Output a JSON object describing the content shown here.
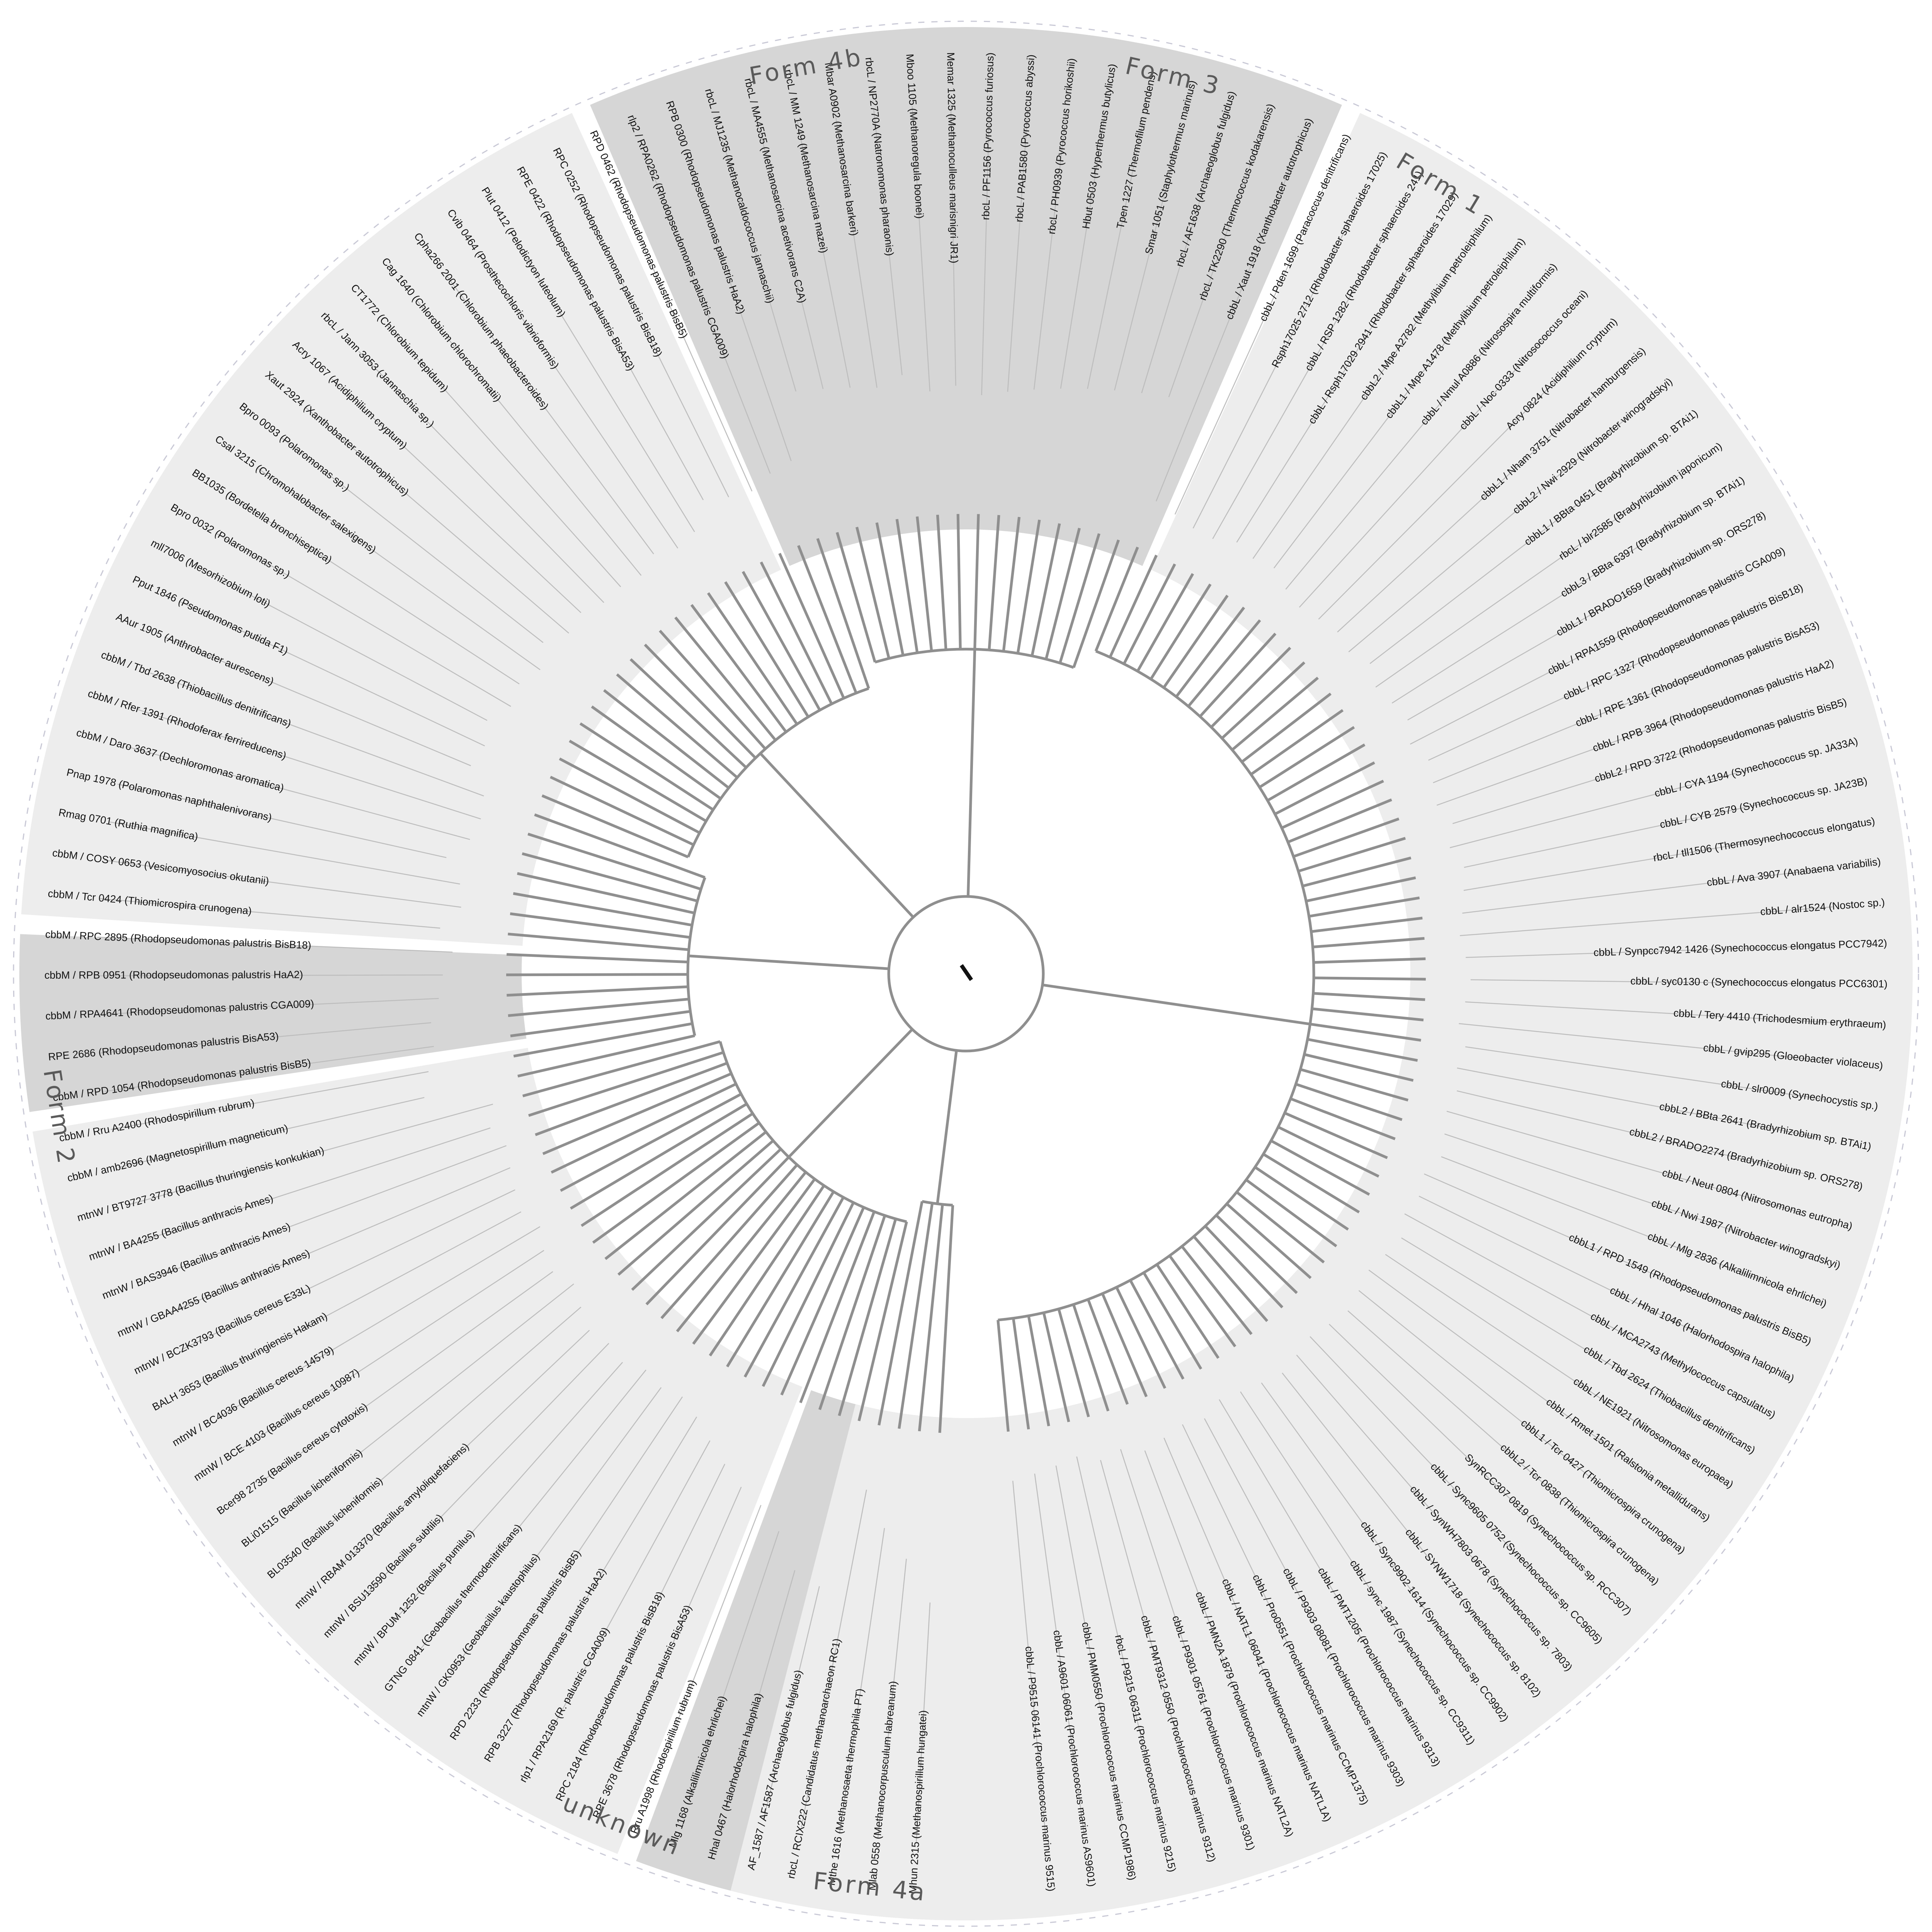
{
  "groups": [
    {
      "label": "unknown",
      "shade": "#d6d6d6",
      "leaves": [
        "Mhun 2315 (Methanospirillum hungatei)",
        "Mlab 0558 (Methanocorpusculum labreanum)",
        "Mthe 1616 (Methanosaeta thermophila PT)",
        "rbcL / RCIX222 (Candidatus methanoarchaeon RC1)"
      ]
    },
    {
      "label": "Form 4a",
      "shade": "#ededed",
      "leaves": [
        "AF_1587 / AF1587 (Archaeoglobus fulgidus)",
        "Hhal 0467 (Halorhodospira halophila)",
        "Mlg 1168 (Alkalilimnicola ehrlichei)",
        "Rru A1998 (Rhodospirillum rubrum)",
        "RPE 3678 (Rhodopseudomonas palustris BisA53)",
        "RPC 2184 (Rhodopseudomonas palustris BisB18)",
        "rlp1 / RPA2169 (R. palustris CGA009)",
        "RPB 3227 (Rhodopseudomonas palustris HaA2)",
        "RPD 2233 (Rhodopseudomonas palustris BisB5)",
        "mtnW / GK0953 (Geobacillus kaustophilus)",
        "GTNG 0841 (Geobacillus thermodenitrificans)",
        "mtnW / BPUM 1252 (Bacillus pumilus)",
        "mtnW / BSU13590 (Bacillus subtilis)",
        "mtnW / RBAM 013370 (Bacillus amyloliquefaciens)",
        "BL03540 (Bacillus licheniformis)",
        "BLi01515 (Bacillus licheniformis)",
        "Bcer98 2735 (Bacillus cereus cytotoxis)",
        "mtnW / BCE 4103 (Bacillus cereus 10987)",
        "mtnW / BC4036 (Bacillus cereus 14579)",
        "BALH 3653 (Bacillus thuringiensis Hakam)",
        "mtnW / BCZK3793 (Bacillus cereus E33L)",
        "mtnW / GBAA4255 (Bacillus anthracis Ames)",
        "mtnW / BAS3946 (Bacillus anthracis Ames)",
        "mtnW / BA4255 (Bacillus anthracis Ames)",
        "mtnW / BT9727 3778 (Bacillus thuringiensis konkukian)"
      ]
    },
    {
      "label": "Form 2",
      "shade": "#d6d6d6",
      "leaves": [
        "cbbM / amb2696 (Magnetospirillum magneticum)",
        "cbbM / Rru A2400 (Rhodospirillum rubrum)",
        "cbbM / RPD 1054 (Rhodopseudomonas palustris BisB5)",
        "RPE 2686 (Rhodopseudomonas palustris BisA53)",
        "cbbM / RPA4641 (Rhodopseudomonas palustris CGA009)",
        "cbbM / RPB 0951 (Rhodopseudomonas palustris HaA2)",
        "cbbM / RPC 2895 (Rhodopseudomonas palustris BisB18)",
        "cbbM / Tcr 0424 (Thiomicrospira crunogena)",
        "cbbM / COSY 0653 (Vesicomyosocius okutanii)",
        "Rmag 0701 (Ruthia magnifica)",
        "Pnap 1978 (Polaromonas naphthalenivorans)",
        "cbbM / Daro 3637 (Dechloromonas aromatica)",
        "cbbM / Rfer 1391 (Rhodoferax ferrireducens)",
        "cbbM / Tbd 2638 (Thiobacillus denitrificans)"
      ]
    },
    {
      "label": "Form 4b",
      "shade": "#ededed",
      "leaves": [
        "AAur 1905 (Anthrobacter aurescens)",
        "Pput 1846 (Pseudomonas putida F1)",
        "mll7006 (Mesorhizobium loti)",
        "Bpro 0032 (Polaromonas sp.)",
        "BB1035 (Bordetella bronchiseptica)",
        "Csal 3215 (Chromohalobacter salexigens)",
        "Bpro 0093 (Polaromonas sp.)",
        "Xaut 2924 (Xanthobacter autotrophicus)",
        "Acry 1067 (Acidiphilium cryptum)",
        "rbcL / Jann 3053 (Jannaschia sp.)",
        "CT1772 (Chlorobium tepidum)",
        "Cag 1640 (Chlorobium chlorochromatii)",
        "Cpha266 2001 (Chlorobium phaeobacteroides)",
        "Cvib 0464 (Prosthecochloris vibrioformis)",
        "Plut 0412 (Pelodictyon luteolum)",
        "RPE 0422 (Rhodopseudomonas palustris BisA53)",
        "RPC 0252 (Rhodopseudomonas palustris BisB18)",
        "RPD 0462 (Rhodopseudomonas palustris BisB5)",
        "rlp2 / RPA0262 (Rhodopseudomonas palustris CGA009)",
        "RPB 0300 (Rhodopseudomonas palustris HaA2)"
      ]
    },
    {
      "label": "Form 3",
      "shade": "#d6d6d6",
      "leaves": [
        "rbcL / MJ1235 (Methanocaldococcus jannaschii)",
        "rbcL / MA4555 (Methanosarcina acetivorans C2A)",
        "rbcL / MM 1249 (Methanosarcina mazei)",
        "Mbar A0902 (Methanosarcina barkeri)",
        "rbcL / NP2770A (Natronomonas pharaonis)",
        "Mboo 1105 (Methanoregula boonei)",
        "Memar 1325 (Methanoculleus marisnigri JR1)",
        "rbcL / PF1156 (Pyrococcus furiosus)",
        "rbcL / PAB1580 (Pyrococcus abyssi)",
        "rbcL / PH0939 (Pyrococcus horikoshii)",
        "Hbut 0503 (Hyperthermus butylicus)",
        "Tpen 1227 (Thermofilum pendens)",
        "Smar 1051 (Staphylothermus marinus)",
        "rbcL / AF1638 (Archaeoglobus fulgidus)",
        "rbcL / TK2290 (Thermococcus kodakarensis)"
      ]
    },
    {
      "label": "Form 1",
      "shade": "#ededed",
      "leaves": [
        "cbbL / Xaut 1918 (Xanthobacter autotrophicus)",
        "cbbL / Pden 1699 (Paracoccus denitrificans)",
        "Rsph17025 2712 (Rhodobacter sphaeroides 17025)",
        "cbbL / RSP 1282 (Rhodobacter sphaeroides 241)",
        "cbbL / Rsph17029 2941 (Rhodobacter sphaeroides 17029)",
        "cbbL2 / Mpe A2782 (Methylibium petroleiphilum)",
        "cbbL1 / Mpe A1478 (Methylibium petroleiphilum)",
        "cbbL / Nmul A0886 (Nitrosospira multiformis)",
        "cbbL / Noc 0333 (Nitrosococcus oceani)",
        "Acry 0824 (Acidiphilium cryptum)",
        "cbbL1 / Nham 3751 (Nitrobacter hamburgensis)",
        "cbbL2 / Nwi 2929 (Nitrobacter winogradskyi)",
        "cbbL1 / BBta 0451 (Bradyrhizobium sp. BTAi1)",
        "rbcL / blr2585 (Bradyrhizobium japonicum)",
        "cbbL3 / BBta 6397 (Bradyrhizobium sp. BTAi1)",
        "cbbL1 / BRADO1659 (Bradyrhizobium sp. ORS278)",
        "cbbL / RPA1559 (Rhodopseudomonas palustris CGA009)",
        "cbbL / RPC 1327 (Rhodopseudomonas palustris BisB18)",
        "cbbL / RPE 1361 (Rhodopseudomonas palustris BisA53)",
        "cbbL / RPB 3964 (Rhodopseudomonas palustris HaA2)",
        "cbbL2 / RPD 3722 (Rhodopseudomonas palustris BisB5)",
        "cbbL / CYA 1194 (Synechococcus sp. JA33A)",
        "cbbL / CYB 2579 (Synechococcus sp. JA23B)",
        "rbcL / tll1506 (Thermosynechococcus elongatus)",
        "cbbL / Ava 3907 (Anabaena variabilis)",
        "cbbL / alr1524 (Nostoc sp.)",
        "cbbL / Synpcc7942 1426 (Synechococcus elongatus PCC7942)",
        "cbbL / syc0130 c (Synechococcus elongatus PCC6301)",
        "cbbL / Tery 4410 (Trichodesmium erythraeum)",
        "cbbL / gvip295 (Gloeobacter violaceus)",
        "cbbL / slr0009 (Synechocystis sp.)",
        "cbbL2 / BBta 2641 (Bradyrhizobium sp. BTAi1)",
        "cbbL2 / BRADO2274 (Bradyrhizobium sp. ORS278)",
        "cbbL / Neut 0804 (Nitrosomonas eutropha)",
        "cbbL / Nwi 1987 (Nitrobacter winogradskyi)",
        "cbbL / Mlg 2836 (Alkalilimnicola ehrlichei)",
        "cbbL1 / RPD 1549 (Rhodopseudomonas palustris BisB5)",
        "cbbL / Hhal 1046 (Halorhodospira halophila)",
        "cbbL / MCA2743 (Methylococcus capsulatus)",
        "cbbL / Tbd 2624 (Thiobacillus denitrificans)",
        "cbbL / NE1921 (Nitrosomonas europaea)",
        "cbbL / Rmet 1501 (Ralstonia metallidurans)",
        "cbbL1 / Tcr 0427 (Thiomicrospira crunogena)",
        "cbbL2 / Tcr 0838 (Thiomicrospira crunogena)",
        "SynRCC307 0819 (Synechococcus sp. RCC307)",
        "cbbL / Sync9605 0752 (Synechococcus sp. CC9605)",
        "cbbL / SynWH7803 0678 (Synechococcus sp. 7803)",
        "cbbL / SYNW1718 (Synechococcus sp. 8102)",
        "cbbL / Sync9902 1614 (Synechococcus sp. CC9902)",
        "cbbL / sync 1987 (Synechococcus sp. CC9311)",
        "cbbL / PMT1205 (Prochlorococcus marinus 9313)",
        "cbbL / P9303 08081 (Prochlorococcus marinus 9303)",
        "cbbL / Pro0551 (Prochlorococcus marinus CCMP1375)",
        "cbbL / NATL1 06041 (Prochlorococcus marinus NATL1A)",
        "cbbL / PMN2A 1879 (Prochlorococcus marinus NATL2A)",
        "cbbL / P9301 05761 (Prochlorococcus marinus 9301)",
        "cbbL / PMT9312 0550 (Prochlorococcus marinus 9312)",
        "rbcL / P9215 06311 (Prochlorococcus marinus 9215)",
        "cbbL / PMM0550 (Prochlorococcus marinus CCMP1986)",
        "cbbL / A9601 06061 (Prochlorococcus marinus AS9601)",
        "cbbL / P9515 06141 (Prochlorococcus marinus 9515)"
      ]
    }
  ]
}
